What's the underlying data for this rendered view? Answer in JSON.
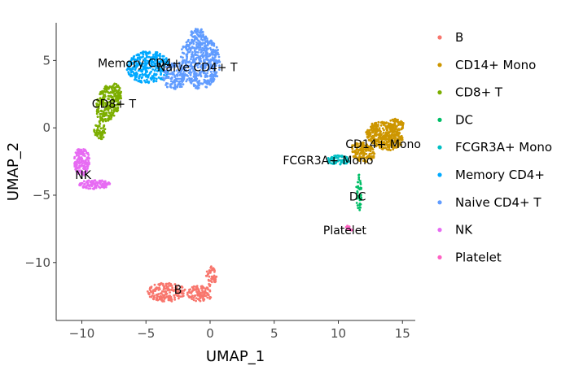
{
  "chart_data": {
    "type": "scatter",
    "title": "",
    "xlabel": "UMAP_1",
    "ylabel": "UMAP_2",
    "xlim": [
      -12,
      16
    ],
    "ylim": [
      -14.3,
      7.8
    ],
    "xticks": [
      -10,
      -5,
      0,
      5,
      10,
      15
    ],
    "xtick_labels": [
      "−10",
      "−5",
      "0",
      "5",
      "10",
      "15"
    ],
    "yticks": [
      -10,
      -5,
      0,
      5
    ],
    "ytick_labels": [
      "−10",
      "−5",
      "0",
      "5"
    ],
    "grid": false,
    "legend_position": "right",
    "clusters": [
      {
        "name": "B",
        "color": "#F8766D",
        "label_at": [
          -2.5,
          -12.0
        ],
        "regions": [
          {
            "cx": -3.4,
            "cy": -12.2,
            "rx": 1.5,
            "ry": 0.7,
            "n": 180,
            "rot": 0
          },
          {
            "cx": -0.8,
            "cy": -12.3,
            "rx": 1.0,
            "ry": 0.6,
            "n": 100,
            "rot": 0
          },
          {
            "cx": 0.1,
            "cy": -11.0,
            "rx": 0.4,
            "ry": 0.8,
            "n": 50,
            "rot": 0
          }
        ]
      },
      {
        "name": "CD14+ Mono",
        "color": "#CD9600",
        "label_at": [
          13.5,
          -1.2
        ],
        "regions": [
          {
            "cx": 13.6,
            "cy": -0.6,
            "rx": 1.5,
            "ry": 1.0,
            "n": 380,
            "rot": -0.35
          },
          {
            "cx": 11.9,
            "cy": -1.8,
            "rx": 1.0,
            "ry": 0.7,
            "n": 160,
            "rot": -0.3
          },
          {
            "cx": 14.5,
            "cy": 0.2,
            "rx": 0.6,
            "ry": 0.5,
            "n": 70,
            "rot": 0
          }
        ]
      },
      {
        "name": "CD8+ T",
        "color": "#7CAE00",
        "label_at": [
          -7.5,
          1.8
        ],
        "regions": [
          {
            "cx": -7.9,
            "cy": 1.9,
            "rx": 0.9,
            "ry": 1.5,
            "n": 260,
            "rot": -0.35
          },
          {
            "cx": -8.6,
            "cy": -0.2,
            "rx": 0.45,
            "ry": 0.7,
            "n": 60,
            "rot": 0
          }
        ]
      },
      {
        "name": "DC",
        "color": "#00BE67",
        "label_at": [
          11.5,
          -5.1
        ],
        "regions": [
          {
            "cx": 11.6,
            "cy": -4.8,
            "rx": 0.2,
            "ry": 1.5,
            "n": 40,
            "rot": 0
          }
        ]
      },
      {
        "name": "FCGR3A+ Mono",
        "color": "#00BFC4",
        "label_at": [
          9.2,
          -2.4
        ],
        "regions": [
          {
            "cx": 10.0,
            "cy": -2.4,
            "rx": 0.9,
            "ry": 0.35,
            "n": 90,
            "rot": 0
          }
        ]
      },
      {
        "name": "Memory CD4+",
        "color": "#00A9FF",
        "label_at": [
          -5.5,
          4.8
        ],
        "regions": [
          {
            "cx": -4.8,
            "cy": 4.5,
            "rx": 1.7,
            "ry": 1.2,
            "n": 320,
            "rot": 0
          }
        ]
      },
      {
        "name": "Naive CD4+ T",
        "color": "#619CFF",
        "label_at": [
          -1.0,
          4.5
        ],
        "regions": [
          {
            "cx": -0.8,
            "cy": 4.9,
            "rx": 1.6,
            "ry": 2.0,
            "n": 500,
            "rot": 0
          },
          {
            "cx": -2.8,
            "cy": 3.8,
            "rx": 0.9,
            "ry": 1.0,
            "n": 120,
            "rot": 0
          },
          {
            "cx": -1.0,
            "cy": 7.0,
            "rx": 0.5,
            "ry": 0.4,
            "n": 40,
            "rot": 0
          }
        ]
      },
      {
        "name": "NK",
        "color": "#E76BF3",
        "label_at": [
          -9.9,
          -3.5
        ],
        "regions": [
          {
            "cx": -10.0,
            "cy": -2.5,
            "rx": 0.6,
            "ry": 1.1,
            "n": 140,
            "rot": 0
          },
          {
            "cx": -9.0,
            "cy": -4.2,
            "rx": 1.2,
            "ry": 0.35,
            "n": 110,
            "rot": 0
          }
        ]
      },
      {
        "name": "Platelet",
        "color": "#FF61C3",
        "label_at": [
          10.5,
          -7.6
        ],
        "regions": [
          {
            "cx": 10.9,
            "cy": -7.4,
            "rx": 0.3,
            "ry": 0.25,
            "n": 12,
            "rot": 0
          }
        ]
      }
    ]
  }
}
